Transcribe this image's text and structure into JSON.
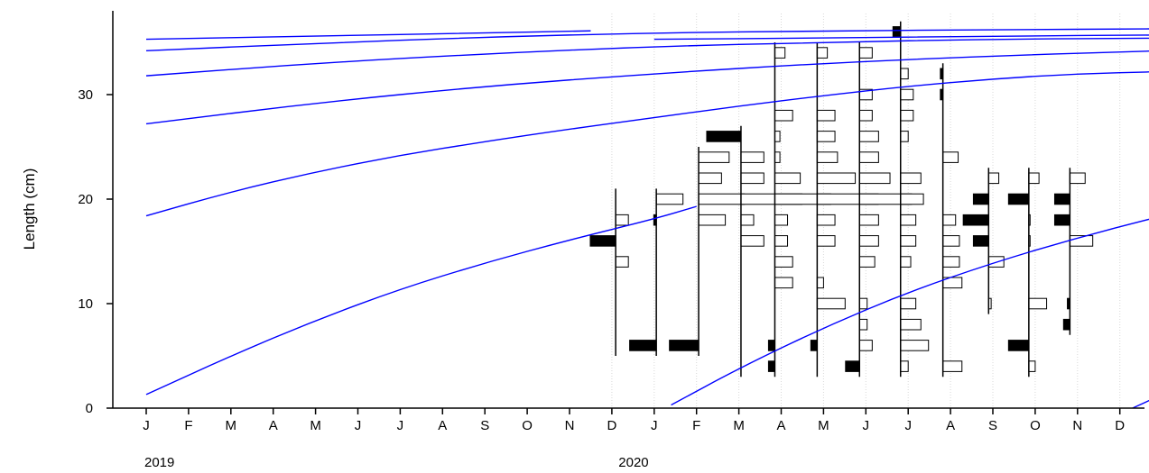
{
  "chart_data": {
    "type": "length-frequency",
    "ylabel": "Length (cm)",
    "ylim": [
      0,
      37
    ],
    "yticks": [
      0,
      10,
      20,
      30
    ],
    "month_ticks": [
      "J",
      "F",
      "M",
      "A",
      "M",
      "J",
      "J",
      "A",
      "S",
      "O",
      "N",
      "D",
      "J",
      "F",
      "M",
      "A",
      "M",
      "J",
      "J",
      "A",
      "S",
      "O",
      "N",
      "D"
    ],
    "year_labels": [
      {
        "label": "2019",
        "month_index": 0
      },
      {
        "label": "2020",
        "month_index": 11.2
      }
    ],
    "grid": "vertical dotted lines at 2020 month boundaries",
    "growth_curve_color": "#0000ff",
    "bar_color_positive": "#000000",
    "bar_color_negative": "#ffffff",
    "growth_curves": [
      {
        "points": [
          [
            0,
            1.3
          ],
          [
            2,
            5.0
          ],
          [
            4,
            8.4
          ],
          [
            6,
            11.4
          ],
          [
            8,
            13.9
          ],
          [
            10,
            16.1
          ],
          [
            12,
            18.1
          ],
          [
            13,
            19.3
          ]
        ]
      },
      {
        "points": [
          [
            12.4,
            0.3
          ],
          [
            14,
            3.8
          ],
          [
            16,
            7.7
          ],
          [
            18,
            11.1
          ],
          [
            20,
            13.9
          ],
          [
            22,
            16.3
          ],
          [
            24,
            18.4
          ]
        ]
      },
      {
        "points": [
          [
            23.3,
            0.0
          ],
          [
            24,
            1.3
          ]
        ]
      },
      {
        "points": [
          [
            0,
            18.4
          ],
          [
            2,
            20.7
          ],
          [
            4,
            22.6
          ],
          [
            6,
            24.2
          ],
          [
            8,
            25.5
          ],
          [
            10,
            26.7
          ],
          [
            12,
            27.8
          ],
          [
            14,
            28.9
          ],
          [
            16,
            29.9
          ],
          [
            18,
            30.8
          ],
          [
            20,
            31.5
          ],
          [
            22,
            32.0
          ],
          [
            24,
            32.2
          ]
        ]
      },
      {
        "points": [
          [
            0,
            27.2
          ],
          [
            4,
            29.2
          ],
          [
            8,
            30.8
          ],
          [
            12,
            32.0
          ],
          [
            16,
            33.0
          ],
          [
            20,
            33.7
          ],
          [
            24,
            34.2
          ]
        ]
      },
      {
        "points": [
          [
            0,
            31.8
          ],
          [
            4,
            33.0
          ],
          [
            8,
            33.9
          ],
          [
            12,
            34.6
          ],
          [
            16,
            35.0
          ],
          [
            20,
            35.3
          ],
          [
            24,
            35.4
          ]
        ]
      },
      {
        "points": [
          [
            0,
            34.2
          ],
          [
            4,
            34.9
          ],
          [
            8,
            35.5
          ],
          [
            12,
            35.9
          ],
          [
            16,
            36.1
          ],
          [
            20,
            36.2
          ],
          [
            24,
            36.3
          ]
        ]
      },
      {
        "points": [
          [
            0,
            35.3
          ],
          [
            4,
            35.6
          ],
          [
            8,
            35.9
          ],
          [
            10.5,
            36.1
          ]
        ]
      },
      {
        "points": [
          [
            12,
            35.3
          ],
          [
            16,
            35.4
          ],
          [
            20,
            35.6
          ],
          [
            24,
            35.7
          ]
        ]
      }
    ],
    "samples": [
      {
        "month": 11.09,
        "bars": [
          {
            "len": 6,
            "v": 0
          },
          {
            "len": 8,
            "v": 0
          },
          {
            "len": 10,
            "v": 0
          },
          {
            "len": 12,
            "v": 0
          },
          {
            "len": 14,
            "v": 0.5
          },
          {
            "len": 16,
            "v": -1.0
          },
          {
            "len": 18,
            "v": 0.5
          },
          {
            "len": 20,
            "v": 0
          }
        ]
      },
      {
        "month": 12.05,
        "bars": [
          {
            "len": 6,
            "v": -1.05
          },
          {
            "len": 16,
            "v": 0
          },
          {
            "len": 18,
            "v": -0.1
          },
          {
            "len": 20,
            "v": 1.05
          }
        ]
      },
      {
        "month": 13.05,
        "bars": [
          {
            "len": 6,
            "v": -1.15
          },
          {
            "len": 16,
            "v": 0
          },
          {
            "len": 18,
            "v": 1.05
          },
          {
            "len": 20,
            "v": 1.8
          },
          {
            "len": 22,
            "v": 0.9
          },
          {
            "len": 24,
            "v": 1.2
          }
        ]
      },
      {
        "month": 14.05,
        "bars": [
          {
            "len": 4,
            "v": 0
          },
          {
            "len": 6,
            "v": 0
          },
          {
            "len": 8,
            "v": 0
          },
          {
            "len": 12,
            "v": 0
          },
          {
            "len": 14,
            "v": 0
          },
          {
            "len": 16,
            "v": 0.9
          },
          {
            "len": 18,
            "v": 0.5
          },
          {
            "len": 20,
            "v": 2.4
          },
          {
            "len": 22,
            "v": 0.9
          },
          {
            "len": 24,
            "v": 0.9
          },
          {
            "len": 26,
            "v": -1.35
          }
        ]
      },
      {
        "month": 14.85,
        "bars": [
          {
            "len": 4,
            "v": -0.25
          },
          {
            "len": 6,
            "v": -0.25
          },
          {
            "len": 8,
            "v": 0
          },
          {
            "len": 12,
            "v": 0.7
          },
          {
            "len": 14,
            "v": 0.7
          },
          {
            "len": 16,
            "v": 0.5
          },
          {
            "len": 18,
            "v": 0.5
          },
          {
            "len": 20,
            "v": 2.2
          },
          {
            "len": 22,
            "v": 1.0
          },
          {
            "len": 24,
            "v": 0.2
          },
          {
            "len": 26,
            "v": 0.2
          },
          {
            "len": 28,
            "v": 0.7
          },
          {
            "len": 34,
            "v": 0.4
          }
        ]
      },
      {
        "month": 15.85,
        "bars": [
          {
            "len": 4,
            "v": 0
          },
          {
            "len": 6,
            "v": -0.25
          },
          {
            "len": 8,
            "v": 0
          },
          {
            "len": 10,
            "v": 1.1
          },
          {
            "len": 12,
            "v": 0.25
          },
          {
            "len": 14,
            "v": 0
          },
          {
            "len": 16,
            "v": 0.7
          },
          {
            "len": 18,
            "v": 0.7
          },
          {
            "len": 20,
            "v": 2.4
          },
          {
            "len": 22,
            "v": 1.5
          },
          {
            "len": 24,
            "v": 0.8
          },
          {
            "len": 26,
            "v": 0.7
          },
          {
            "len": 28,
            "v": 0.7
          },
          {
            "len": 34,
            "v": 0.4
          }
        ]
      },
      {
        "month": 16.85,
        "bars": [
          {
            "len": 4,
            "v": -0.55
          },
          {
            "len": 6,
            "v": 0.5
          },
          {
            "len": 8,
            "v": 0.3
          },
          {
            "len": 10,
            "v": 0.3
          },
          {
            "len": 14,
            "v": 0.6
          },
          {
            "len": 16,
            "v": 0.75
          },
          {
            "len": 18,
            "v": 0.75
          },
          {
            "len": 20,
            "v": 2.05
          },
          {
            "len": 22,
            "v": 1.2
          },
          {
            "len": 24,
            "v": 0.75
          },
          {
            "len": 26,
            "v": 0.75
          },
          {
            "len": 28,
            "v": 0.5
          },
          {
            "len": 30,
            "v": 0.5
          },
          {
            "len": 34,
            "v": 0.5
          }
        ]
      },
      {
        "month": 17.82,
        "bars": [
          {
            "len": 4,
            "v": 0.3
          },
          {
            "len": 6,
            "v": 1.1
          },
          {
            "len": 8,
            "v": 0.8
          },
          {
            "len": 10,
            "v": 0.6
          },
          {
            "len": 14,
            "v": 0.4
          },
          {
            "len": 16,
            "v": 0.6
          },
          {
            "len": 18,
            "v": 0.6
          },
          {
            "len": 20,
            "v": 0.9
          },
          {
            "len": 22,
            "v": 0.8
          },
          {
            "len": 26,
            "v": 0.3
          },
          {
            "len": 28,
            "v": 0.5
          },
          {
            "len": 30,
            "v": 0.5
          },
          {
            "len": 32,
            "v": 0.3
          },
          {
            "len": 36,
            "v": -0.3
          }
        ]
      },
      {
        "month": 18.82,
        "bars": [
          {
            "len": 4,
            "v": 0.75
          },
          {
            "len": 12,
            "v": 0.75
          },
          {
            "len": 14,
            "v": 0.65
          },
          {
            "len": 16,
            "v": 0.65
          },
          {
            "len": 18,
            "v": 0.5
          },
          {
            "len": 24,
            "v": 0.6
          },
          {
            "len": 30,
            "v": -0.1
          },
          {
            "len": 32,
            "v": -0.1
          }
        ]
      },
      {
        "month": 19.9,
        "bars": [
          {
            "len": 14,
            "v": 0.6
          },
          {
            "len": 16,
            "v": -0.6
          },
          {
            "len": 18,
            "v": -1.0
          },
          {
            "len": 20,
            "v": -0.6
          },
          {
            "len": 22,
            "v": 0.4
          },
          {
            "len": 10,
            "v": 0.1
          }
        ]
      },
      {
        "month": 20.85,
        "bars": [
          {
            "len": 4,
            "v": 0.25
          },
          {
            "len": 6,
            "v": -0.8
          },
          {
            "len": 10,
            "v": 0.7
          },
          {
            "len": 16,
            "v": 0.05
          },
          {
            "len": 18,
            "v": 0.05
          },
          {
            "len": 20,
            "v": -0.8
          },
          {
            "len": 22,
            "v": 0.4
          }
        ]
      },
      {
        "month": 21.82,
        "bars": [
          {
            "len": 8,
            "v": -0.25
          },
          {
            "len": 10,
            "v": -0.1
          },
          {
            "len": 16,
            "v": 0.9
          },
          {
            "len": 18,
            "v": -0.6
          },
          {
            "len": 20,
            "v": -0.6
          },
          {
            "len": 22,
            "v": 0.6
          }
        ]
      }
    ]
  }
}
